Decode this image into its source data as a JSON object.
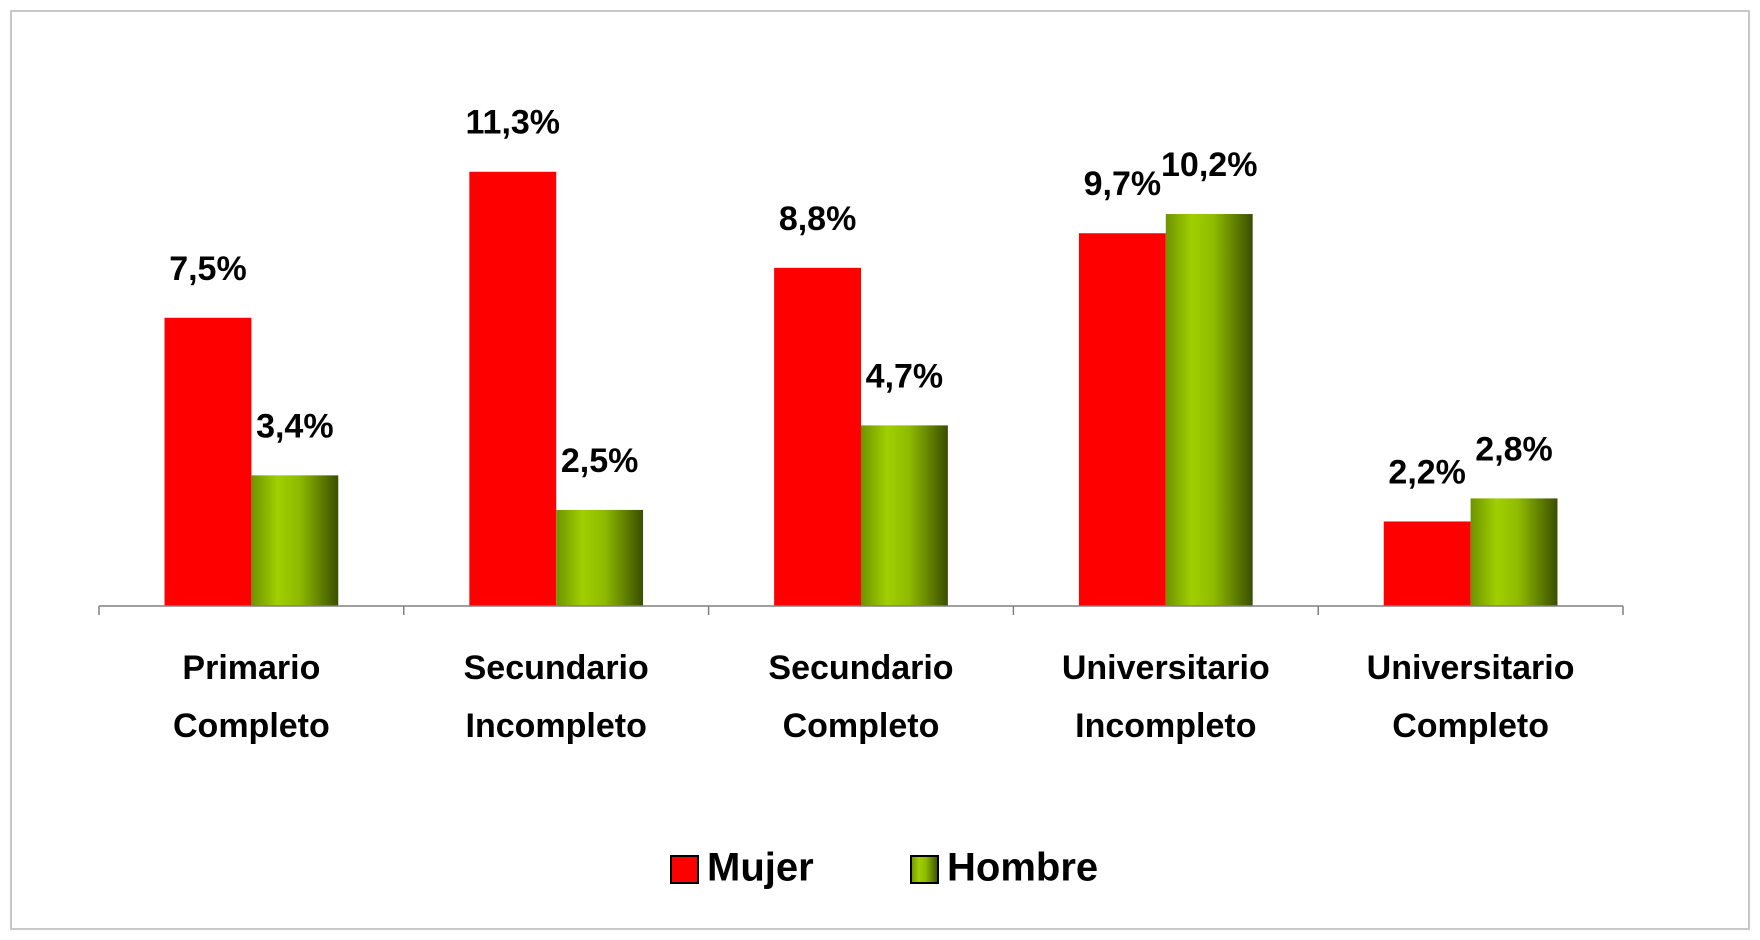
{
  "chart_data": {
    "type": "bar",
    "categories": [
      [
        "Primario",
        "Completo"
      ],
      [
        "Secundario",
        "Incompleto"
      ],
      [
        "Secundario",
        "Completo"
      ],
      [
        "Universitario",
        "Incompleto"
      ],
      [
        "Universitario",
        "Completo"
      ]
    ],
    "series": [
      {
        "name": "Mujer",
        "color": "#ff0000",
        "values": [
          7.5,
          11.3,
          8.8,
          9.7,
          2.2
        ],
        "value_labels": [
          "7,5%",
          "11,3%",
          "8,8%",
          "9,7%",
          "2,2%"
        ]
      },
      {
        "name": "Hombre",
        "color": "#99cc00",
        "values": [
          3.4,
          2.5,
          4.7,
          10.2,
          2.8
        ],
        "value_labels": [
          "3,4%",
          "2,5%",
          "4,7%",
          "10,2%",
          "2,8%"
        ]
      }
    ],
    "ylim": [
      0,
      14
    ],
    "grid": false,
    "legend": "bottom"
  }
}
